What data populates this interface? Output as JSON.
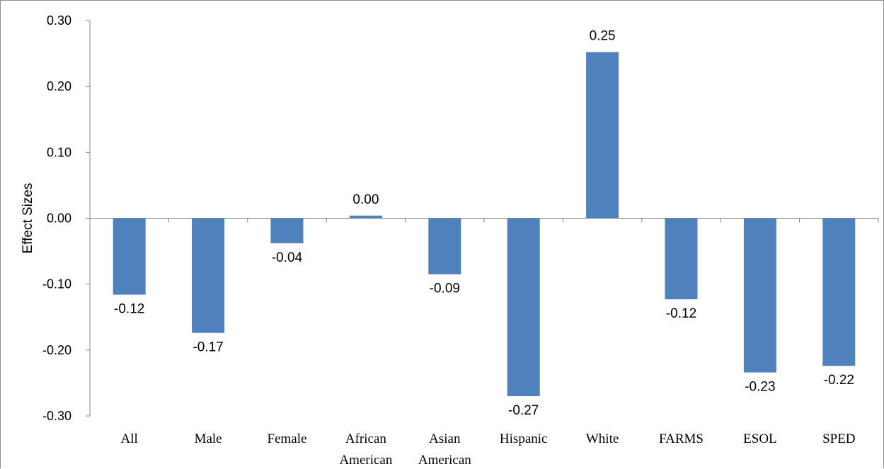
{
  "chart_data": {
    "type": "bar",
    "title": "",
    "xlabel": "",
    "ylabel": "Effect Sizes",
    "ylim": [
      -0.3,
      0.3
    ],
    "yticks": [
      "0.30",
      "0.20",
      "0.10",
      "0.00",
      "-0.10",
      "-0.20",
      "-0.30"
    ],
    "categories": [
      [
        "All"
      ],
      [
        "Male"
      ],
      [
        "Female"
      ],
      [
        "African",
        "American"
      ],
      [
        "Asian",
        "American"
      ],
      [
        "Hispanic"
      ],
      [
        "White"
      ],
      [
        "FARMS"
      ],
      [
        "ESOL"
      ],
      [
        "SPED"
      ]
    ],
    "values": [
      -0.116,
      -0.174,
      -0.038,
      0.004,
      -0.085,
      -0.27,
      0.252,
      -0.123,
      -0.234,
      -0.224
    ],
    "data_labels": [
      "-0.12",
      "-0.17",
      "-0.04",
      "0.00",
      "-0.09",
      "-0.27",
      "0.25",
      "-0.12",
      "-0.23",
      "-0.22"
    ],
    "bar_color": "#4F81BD",
    "grid": false,
    "legend": "none"
  }
}
